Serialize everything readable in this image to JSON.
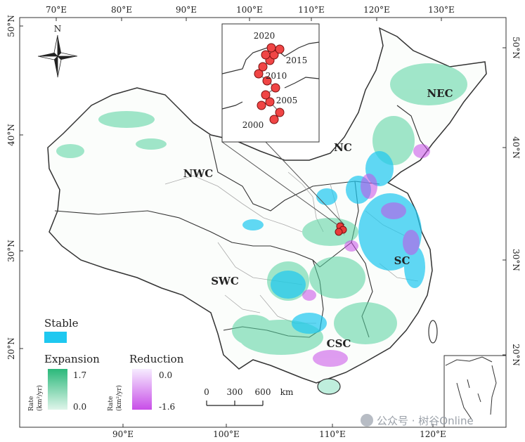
{
  "map": {
    "top_lon_ticks": [
      "70°E",
      "80°E",
      "90°E",
      "100°E",
      "110°E",
      "120°E",
      "130°E"
    ],
    "bottom_lon_ticks": [
      "90°E",
      "100°E",
      "110°E",
      "120°E"
    ],
    "left_lat_ticks": [
      "50°N",
      "40°N",
      "30°N",
      "20°N"
    ],
    "right_lat_ticks": [
      "50°N",
      "40°N",
      "30°N",
      "20°N"
    ],
    "north_label": "N",
    "regions": [
      "NEC",
      "NC",
      "NWC",
      "SC",
      "SWC",
      "CSC"
    ],
    "inset_years": [
      "2020",
      "2015",
      "2010",
      "2005",
      "2000"
    ]
  },
  "legend": {
    "stable_label": "Stable",
    "expansion_label": "Expansion",
    "expansion_max": "1.7",
    "expansion_min": "0.0",
    "reduction_label": "Reduction",
    "reduction_max": "0.0",
    "reduction_min": "-1.6",
    "rate_label_line1": "Rate",
    "rate_label_line2": "(km²/yr)",
    "colors": {
      "stable": "#1ec8f0",
      "expansion_high": "#2ab87a",
      "expansion_low": "#dff5ea",
      "reduction_high": "#f4e8ff",
      "reduction_low": "#c84ee8",
      "centroid": "#e83a3a"
    }
  },
  "scale_bar": {
    "ticks": [
      "0",
      "300",
      "600"
    ],
    "unit": "km"
  },
  "watermark": "公众号 · 树谷Online"
}
